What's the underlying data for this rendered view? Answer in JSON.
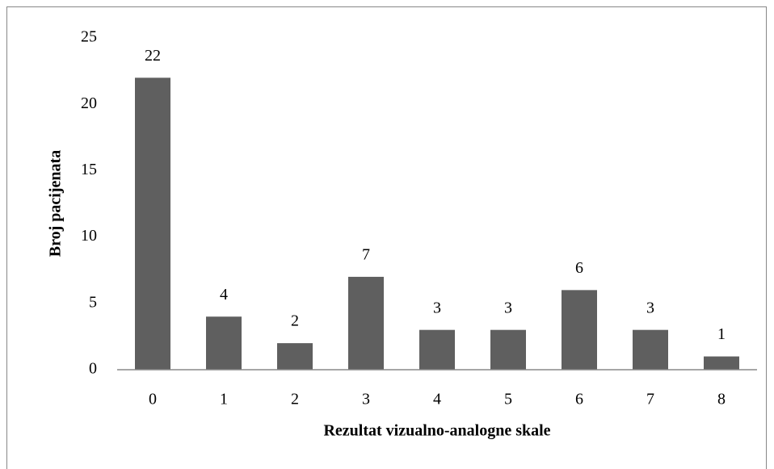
{
  "chart_data": {
    "type": "bar",
    "x_label": "Rezultat vizualno-analogne skale",
    "y_label": "Broj pacijenata",
    "categories": [
      "0",
      "1",
      "2",
      "3",
      "4",
      "5",
      "6",
      "7",
      "8"
    ],
    "values": [
      22,
      4,
      2,
      7,
      3,
      3,
      6,
      3,
      1
    ],
    "color": "#5f5f5f",
    "ylim": [
      0,
      25
    ],
    "yticks": [
      0,
      5,
      10,
      15,
      20,
      25
    ],
    "grid": false
  }
}
